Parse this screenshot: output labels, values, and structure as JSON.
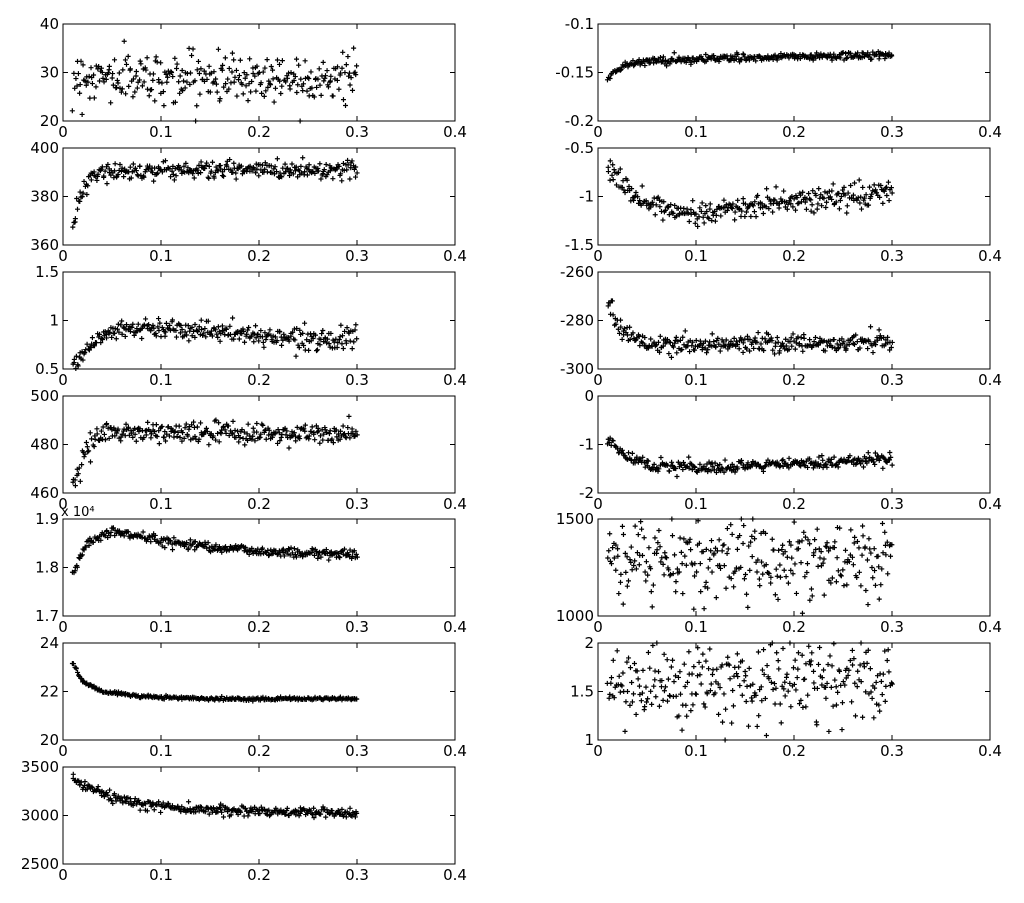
{
  "chart_data": [
    {
      "id": "L1",
      "type": "scatter",
      "marker": "+",
      "xlim": [
        0,
        0.4
      ],
      "ylim": [
        20,
        40
      ],
      "xticks": [
        "0",
        "0.1",
        "0.2",
        "0.3",
        "0.4"
      ],
      "yticks": [
        "20",
        "30",
        "40"
      ],
      "x_range": [
        0.01,
        0.3
      ],
      "trend": [
        [
          0.01,
          29
        ],
        [
          0.3,
          29
        ]
      ],
      "spread": 2.5,
      "n": 300
    },
    {
      "id": "L2",
      "type": "scatter",
      "marker": "+",
      "xlim": [
        0,
        0.4
      ],
      "ylim": [
        360,
        400
      ],
      "xticks": [
        "0",
        "0.1",
        "0.2",
        "0.3",
        "0.4"
      ],
      "yticks": [
        "360",
        "380",
        "400"
      ],
      "x_range": [
        0.01,
        0.3
      ],
      "trend": [
        [
          0.01,
          369
        ],
        [
          0.02,
          382
        ],
        [
          0.035,
          390
        ],
        [
          0.1,
          391
        ],
        [
          0.3,
          391
        ]
      ],
      "spread": 1.8,
      "n": 300
    },
    {
      "id": "L3",
      "type": "scatter",
      "marker": "+",
      "xlim": [
        0,
        0.4
      ],
      "ylim": [
        0.5,
        1.5
      ],
      "xticks": [
        "0",
        "0.1",
        "0.2",
        "0.3",
        "0.4"
      ],
      "yticks": [
        "0.5",
        "1",
        "1.5"
      ],
      "x_range": [
        0.01,
        0.3
      ],
      "trend": [
        [
          0.01,
          0.55
        ],
        [
          0.03,
          0.78
        ],
        [
          0.06,
          0.92
        ],
        [
          0.12,
          0.92
        ],
        [
          0.2,
          0.84
        ],
        [
          0.3,
          0.8
        ]
      ],
      "spread": 0.05,
      "n": 300
    },
    {
      "id": "L4",
      "type": "scatter",
      "marker": "+",
      "xlim": [
        0,
        0.4
      ],
      "ylim": [
        460,
        500
      ],
      "xticks": [
        "0",
        "0.1",
        "0.2",
        "0.3",
        "0.4"
      ],
      "yticks": [
        "460",
        "480",
        "500"
      ],
      "x_range": [
        0.01,
        0.3
      ],
      "trend": [
        [
          0.01,
          463
        ],
        [
          0.025,
          478
        ],
        [
          0.04,
          485
        ],
        [
          0.1,
          485
        ],
        [
          0.3,
          484
        ]
      ],
      "spread": 2.2,
      "n": 300
    },
    {
      "id": "L5",
      "type": "scatter",
      "marker": "+",
      "xlim": [
        0,
        0.4
      ],
      "ylim": [
        1.7,
        1.9
      ],
      "multiplier": "x 10⁴",
      "xticks": [
        "0",
        "0.1",
        "0.2",
        "0.3",
        "0.4"
      ],
      "yticks": [
        "1.7",
        "1.8",
        "1.9"
      ],
      "x_range": [
        0.01,
        0.3
      ],
      "trend": [
        [
          0.01,
          1.79
        ],
        [
          0.025,
          1.85
        ],
        [
          0.05,
          1.875
        ],
        [
          0.1,
          1.855
        ],
        [
          0.2,
          1.833
        ],
        [
          0.3,
          1.827
        ]
      ],
      "spread": 0.005,
      "n": 300
    },
    {
      "id": "L6",
      "type": "scatter",
      "marker": "+",
      "xlim": [
        0,
        0.4
      ],
      "ylim": [
        20,
        24
      ],
      "xticks": [
        "0",
        "0.1",
        "0.2",
        "0.3",
        "0.4"
      ],
      "yticks": [
        "20",
        "22",
        "24"
      ],
      "x_range": [
        0.01,
        0.3
      ],
      "trend": [
        [
          0.01,
          23.2
        ],
        [
          0.02,
          22.4
        ],
        [
          0.04,
          22.0
        ],
        [
          0.08,
          21.8
        ],
        [
          0.15,
          21.7
        ],
        [
          0.3,
          21.7
        ]
      ],
      "spread": 0.03,
      "n": 300
    },
    {
      "id": "L7",
      "type": "scatter",
      "marker": "+",
      "xlim": [
        0,
        0.4
      ],
      "ylim": [
        2500,
        3500
      ],
      "xticks": [
        "0",
        "0.1",
        "0.2",
        "0.3",
        "0.4"
      ],
      "yticks": [
        "2500",
        "3000",
        "3500"
      ],
      "x_range": [
        0.01,
        0.3
      ],
      "trend": [
        [
          0.01,
          3370
        ],
        [
          0.04,
          3220
        ],
        [
          0.08,
          3110
        ],
        [
          0.15,
          3060
        ],
        [
          0.3,
          3020
        ]
      ],
      "spread": 25,
      "n": 300
    },
    {
      "id": "R1",
      "type": "scatter",
      "marker": "+",
      "xlim": [
        0,
        0.4
      ],
      "ylim": [
        -0.2,
        -0.1
      ],
      "xticks": [
        "0",
        "0.1",
        "0.2",
        "0.3",
        "0.4"
      ],
      "yticks": [
        "-0.2",
        "-0.15",
        "-0.1"
      ],
      "x_range": [
        0.01,
        0.3
      ],
      "trend": [
        [
          0.01,
          -0.155
        ],
        [
          0.025,
          -0.143
        ],
        [
          0.05,
          -0.138
        ],
        [
          0.15,
          -0.135
        ],
        [
          0.3,
          -0.132
        ]
      ],
      "spread": 0.002,
      "n": 300
    },
    {
      "id": "R2",
      "type": "scatter",
      "marker": "+",
      "xlim": [
        0,
        0.4
      ],
      "ylim": [
        -1.5,
        -0.5
      ],
      "xticks": [
        "0",
        "0.1",
        "0.2",
        "0.3",
        "0.4"
      ],
      "yticks": [
        "-1.5",
        "-1",
        "-0.5"
      ],
      "x_range": [
        0.01,
        0.3
      ],
      "trend": [
        [
          0.01,
          -0.7
        ],
        [
          0.04,
          -1.05
        ],
        [
          0.08,
          -1.15
        ],
        [
          0.12,
          -1.15
        ],
        [
          0.2,
          -1.05
        ],
        [
          0.3,
          -0.95
        ]
      ],
      "spread": 0.06,
      "n": 300
    },
    {
      "id": "R3",
      "type": "scatter",
      "marker": "+",
      "xlim": [
        0,
        0.4
      ],
      "ylim": [
        -300,
        -260
      ],
      "xticks": [
        "0",
        "0.1",
        "0.2",
        "0.3",
        "0.4"
      ],
      "yticks": [
        "-300",
        "-280",
        "-260"
      ],
      "x_range": [
        0.01,
        0.3
      ],
      "trend": [
        [
          0.01,
          -273
        ],
        [
          0.025,
          -285
        ],
        [
          0.05,
          -290
        ],
        [
          0.3,
          -289
        ]
      ],
      "spread": 2.0,
      "n": 300
    },
    {
      "id": "R4",
      "type": "scatter",
      "marker": "+",
      "xlim": [
        0,
        0.4
      ],
      "ylim": [
        -2,
        0
      ],
      "xticks": [
        "0",
        "0.1",
        "0.2",
        "0.3",
        "0.4"
      ],
      "yticks": [
        "-2",
        "-1",
        "0"
      ],
      "x_range": [
        0.01,
        0.3
      ],
      "trend": [
        [
          0.01,
          -0.9
        ],
        [
          0.03,
          -1.25
        ],
        [
          0.06,
          -1.45
        ],
        [
          0.12,
          -1.5
        ],
        [
          0.2,
          -1.4
        ],
        [
          0.3,
          -1.3
        ]
      ],
      "spread": 0.06,
      "n": 300
    },
    {
      "id": "R5",
      "type": "scatter",
      "marker": "+",
      "xlim": [
        0,
        0.4
      ],
      "ylim": [
        1000,
        1500
      ],
      "xticks": [
        "0",
        "0.1",
        "0.2",
        "0.3",
        "0.4"
      ],
      "yticks": [
        "1000",
        "1500"
      ],
      "x_range": [
        0.01,
        0.3
      ],
      "trend": [
        [
          0.01,
          1290
        ],
        [
          0.3,
          1290
        ]
      ],
      "spread": 100,
      "n": 300
    },
    {
      "id": "R6",
      "type": "scatter",
      "marker": "+",
      "xlim": [
        0,
        0.4
      ],
      "ylim": [
        1,
        2
      ],
      "xticks": [
        "0",
        "0.1",
        "0.2",
        "0.3",
        "0.4"
      ],
      "yticks": [
        "1",
        "1.5",
        "2"
      ],
      "x_range": [
        0.01,
        0.3
      ],
      "trend": [
        [
          0.01,
          1.55
        ],
        [
          0.3,
          1.6
        ]
      ],
      "spread": 0.2,
      "n": 300
    }
  ]
}
